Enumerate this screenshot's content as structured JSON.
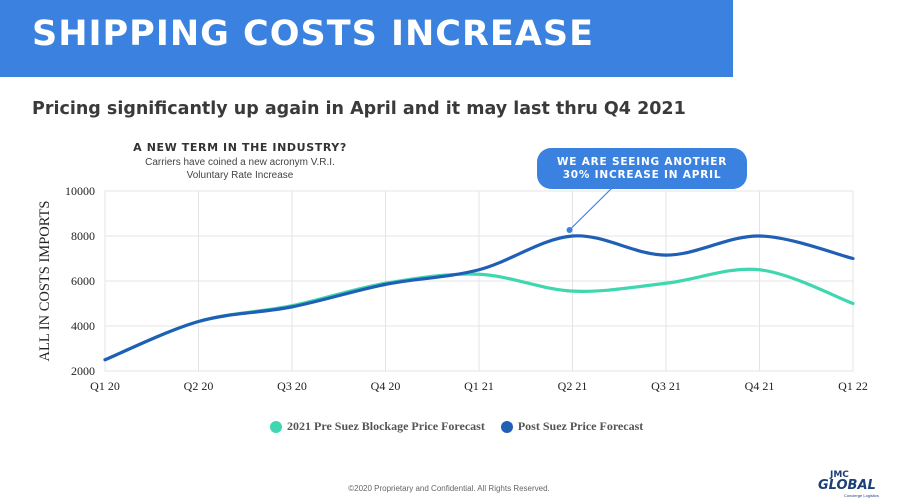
{
  "header": {
    "title": "SHIPPING COSTS INCREASE",
    "subtitle": "Pricing significantly up again in April and it may last thru Q4 2021"
  },
  "note": {
    "heading": "A NEW TERM IN THE INDUSTRY?",
    "line1": "Carriers have coined a new acronym V.R.I.",
    "line2": "Voluntary Rate Increase"
  },
  "callout": {
    "line1": "WE ARE SEEING ANOTHER",
    "line2": "30% INCREASE IN APRIL"
  },
  "colors": {
    "banner": "#3b82e0",
    "pre_suez": "#3fd6b0",
    "post_suez": "#1f5fb5",
    "grid": "#e4e4e4"
  },
  "chart_data": {
    "type": "line",
    "title": "",
    "xlabel": "",
    "ylabel": "ALL IN COSTS IMPORTS",
    "categories": [
      "Q1 20",
      "Q2 20",
      "Q3 20",
      "Q4 20",
      "Q1 21",
      "Q2 21",
      "Q3 21",
      "Q4 21",
      "Q1 22"
    ],
    "ylim": [
      2000,
      10000
    ],
    "yticks": [
      2000,
      4000,
      6000,
      8000,
      10000
    ],
    "grid": true,
    "legend_position": "bottom",
    "series": [
      {
        "name": "2021 Pre Suez Blockage Price Forecast",
        "color": "#3fd6b0",
        "values": [
          2500,
          4200,
          4900,
          5900,
          6300,
          5550,
          5900,
          6500,
          5000
        ]
      },
      {
        "name": "Post Suez Price Forecast",
        "color": "#1f5fb5",
        "values": [
          2500,
          4200,
          4850,
          5850,
          6500,
          8000,
          7150,
          8000,
          7000
        ]
      }
    ],
    "annotation": {
      "category": "Q2 21",
      "text": "WE ARE SEEING ANOTHER 30% INCREASE IN APRIL"
    }
  },
  "footer": {
    "copyright": "©2020 Proprietary and Confidential. All Rights Reserved."
  },
  "logo": {
    "top": "JMC",
    "main": "GLOBAL",
    "tagline": "Concierge Logistics"
  }
}
